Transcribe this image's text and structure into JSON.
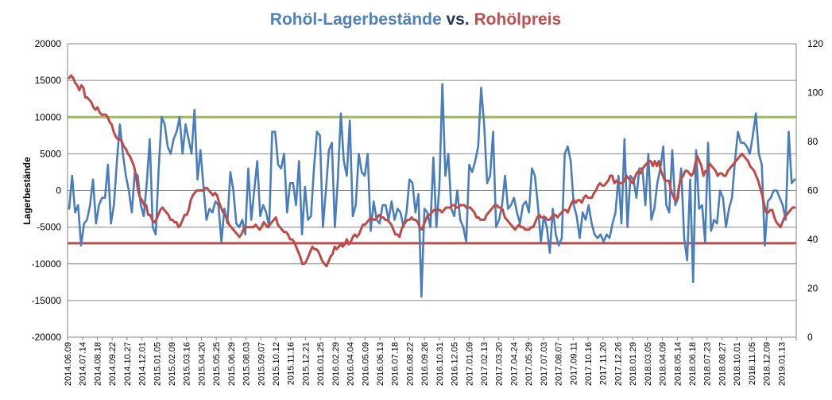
{
  "chart_data": {
    "type": "line",
    "title": {
      "part1": "Rohöl-Lagerbestände",
      "part2": " vs. ",
      "part3": "Rohölpreis"
    },
    "ylabel_left": "Lagerbestände",
    "ylim_left": [
      -20000,
      20000
    ],
    "yticks_left": [
      20000,
      15000,
      10000,
      5000,
      0,
      -5000,
      -10000,
      -15000,
      -20000
    ],
    "ylim_right": [
      0,
      120
    ],
    "yticks_right": [
      120,
      100,
      80,
      60,
      40,
      20,
      0
    ],
    "grid": true,
    "x_ticks": [
      "2014.06.09",
      "2014.07.14",
      "2014.08.18",
      "2014.09.22",
      "2014.10.27",
      "2014.12.01",
      "2015.01.05",
      "2015.02.09",
      "2015.03.16",
      "2015.04.20",
      "2015.05.25",
      "2015.06.29",
      "2015.08.03",
      "2015.09.07",
      "2015.10.12",
      "2015.11.16",
      "2015.12.21",
      "2016.01.25",
      "2016.02.29",
      "2016.04.04",
      "2016.05.09",
      "2016.06.13",
      "2016.07.18",
      "2016.08.22",
      "2016.09.26",
      "2016.10.31",
      "2016.12.05",
      "2017.01.09",
      "2017.02.13",
      "2017.03.20",
      "2017.04.24",
      "2017.05.29",
      "2017.07.03",
      "2017.08.07",
      "2017.09.11",
      "2017.10.16",
      "2017.11.20",
      "2017.12.26",
      "2018.01.29",
      "2018.03.05",
      "2018.04.09",
      "2018.05.14",
      "2018.06.18",
      "2018.07.23",
      "2018.08.27",
      "2018.10.01",
      "2018.11.05",
      "2018.12.09",
      "2019.01.13"
    ],
    "colors": {
      "inventory": "#4a7ebb",
      "price": "#be4b48",
      "upper_line": "#9bbb59",
      "lower_line": "#be4b48",
      "grid": "#868686",
      "title_inventory": "#4f81bd",
      "title_price": "#c0504d",
      "title_mid": "#1f3a60"
    },
    "horizontal_lines": [
      {
        "axis": "left",
        "y": 10000,
        "color": "#9bbb59"
      },
      {
        "axis": "left",
        "y": -7200,
        "color": "#be4b48"
      }
    ],
    "series": [
      {
        "name": "Rohöl-Lagerbestände",
        "axis": "left",
        "color": "#4a7ebb",
        "values": [
          -2500,
          2000,
          -3000,
          -2000,
          -7500,
          -4500,
          -4000,
          -2000,
          1500,
          -4500,
          -2000,
          -1000,
          -1000,
          3500,
          -4500,
          -2000,
          4000,
          9000,
          5000,
          2000,
          0,
          -3000,
          2500,
          2000,
          -2000,
          -3500,
          1000,
          7000,
          -5000,
          -6000,
          3000,
          10000,
          9000,
          6000,
          5000,
          7000,
          8000,
          10000,
          5000,
          9000,
          7000,
          5000,
          11000,
          1500,
          5500,
          500,
          -4000,
          -2500,
          -3000,
          -1500,
          -2000,
          -7000,
          -2500,
          -4500,
          2500,
          0,
          -4500,
          -5000,
          -4000,
          -6000,
          3000,
          -4000,
          0,
          4000,
          -3500,
          -2000,
          -3000,
          -5000,
          8000,
          8000,
          3500,
          3000,
          5000,
          -3000,
          1000,
          1000,
          -2000,
          4000,
          -6000,
          500,
          -4000,
          -3500,
          3000,
          8000,
          7500,
          -5000,
          0,
          5500,
          6500,
          -5000,
          1500,
          10500,
          4000,
          2000,
          9500,
          -3500,
          -2000,
          5000,
          2500,
          2000,
          5000,
          -5500,
          -1500,
          -4000,
          -4500,
          -2000,
          -2000,
          -4000,
          -1500,
          -4000,
          -2500,
          -3000,
          -5000,
          -3000,
          1500,
          1000,
          -3000,
          -500,
          -14500,
          -2500,
          -3000,
          -5000,
          4500,
          -5000,
          500,
          14500,
          2000,
          5000,
          -2500,
          -3500,
          0,
          -4000,
          -5000,
          -7000,
          3500,
          2500,
          4000,
          6000,
          14000,
          9000,
          1000,
          2000,
          8000,
          -5000,
          -4000,
          -2000,
          2000,
          -2500,
          -2000,
          -1000,
          -3000,
          -4500,
          -2000,
          -1500,
          -3000,
          3000,
          2000,
          -2000,
          -7000,
          -3500,
          -5000,
          -8500,
          -2500,
          -6000,
          -7500,
          -6500,
          5000,
          6000,
          4000,
          -2000,
          -3500,
          -6500,
          -3000,
          -4000,
          -2000,
          -4500,
          -6000,
          -6500,
          -6000,
          -7000,
          -6000,
          -6500,
          -4500,
          -3000,
          2000,
          -4500,
          7000,
          -5000,
          2000,
          1500,
          -1000,
          3000,
          3000,
          -2000,
          5000,
          -4000,
          -2500,
          1000,
          3000,
          6000,
          -2000,
          -3000,
          5500,
          -2000,
          -1000,
          3000,
          -6500,
          -9500,
          1500,
          -12500,
          5500,
          -2500,
          -2000,
          -7000,
          6500,
          -5500,
          -4000,
          -4500,
          0,
          -1000,
          -5000,
          -2500,
          -1000,
          4000,
          8000,
          6500,
          6500,
          6000,
          5000,
          7500,
          10500,
          5000,
          3500,
          -7500,
          -1500,
          -1000,
          0,
          0,
          -1000,
          -2000,
          -4000,
          8000,
          1000,
          1500
        ]
      },
      {
        "name": "Rohölpreis",
        "axis": "right",
        "color": "#be4b48",
        "values": [
          106,
          107,
          106,
          104,
          103,
          101,
          103,
          102,
          98,
          98,
          97,
          96,
          94,
          93,
          94,
          92,
          91,
          91,
          91,
          90,
          88,
          87,
          84,
          82,
          81,
          81,
          80,
          78,
          77,
          75,
          74,
          72,
          70,
          66,
          60,
          57,
          56,
          54,
          54,
          50,
          50,
          48,
          47,
          48,
          50,
          52,
          53,
          52,
          51,
          50,
          48,
          48,
          47,
          47,
          45,
          46,
          48,
          50,
          50,
          52,
          56,
          58,
          59,
          60,
          60,
          60,
          60,
          61,
          61,
          60,
          59,
          58,
          59,
          58,
          55,
          53,
          51,
          50,
          48,
          46,
          45,
          44,
          43,
          42,
          41,
          42,
          44,
          45,
          45,
          45,
          45,
          45,
          46,
          45,
          44,
          45,
          47,
          46,
          45,
          46,
          47,
          48,
          49,
          46,
          45,
          44,
          43,
          43,
          42,
          40,
          40,
          39,
          37,
          35,
          33,
          30,
          30,
          31,
          33,
          35,
          37,
          36,
          36,
          35,
          33,
          31,
          30,
          29,
          31,
          33,
          34,
          37,
          36,
          37,
          38,
          37,
          38,
          40,
          38,
          39,
          41,
          42,
          41,
          42,
          44,
          46,
          46,
          47,
          48,
          49,
          48,
          48,
          49,
          50,
          49,
          49,
          48,
          48,
          47,
          46,
          44,
          42,
          42,
          41,
          44,
          46,
          47,
          48,
          48,
          49,
          48,
          48,
          47,
          45,
          44,
          46,
          48,
          50,
          50,
          51,
          52,
          52,
          52,
          52,
          51,
          52,
          53,
          53,
          53,
          54,
          54,
          53,
          53,
          54,
          54,
          54,
          53,
          53,
          53,
          52,
          51,
          49,
          49,
          48,
          48,
          48,
          50,
          51,
          52,
          53,
          54,
          54,
          53,
          53,
          52,
          49,
          48,
          47,
          46,
          45,
          44,
          45,
          46,
          45,
          45,
          44,
          44,
          44,
          45,
          45,
          47,
          49,
          50,
          49,
          49,
          49,
          48,
          48,
          49,
          50,
          50,
          49,
          50,
          51,
          52,
          52,
          51,
          53,
          55,
          56,
          55,
          56,
          56,
          55,
          57,
          58,
          57,
          57,
          57,
          59,
          60,
          62,
          63,
          62,
          62,
          63,
          64,
          66,
          66,
          63,
          64,
          63,
          63,
          63,
          64,
          66,
          65,
          64,
          63,
          65,
          67,
          68,
          67,
          69,
          70,
          71,
          72,
          72,
          70,
          72,
          70,
          72,
          68,
          66,
          64,
          64,
          64,
          60,
          58,
          56,
          56,
          62,
          65,
          66,
          68,
          68,
          67,
          66,
          67,
          71,
          74,
          72,
          70,
          66,
          68,
          68,
          71,
          70,
          69,
          68,
          66,
          67,
          67,
          66,
          66,
          68,
          69,
          70,
          71,
          72,
          73,
          74,
          75,
          74,
          73,
          72,
          70,
          69,
          68,
          66,
          64,
          61,
          58,
          54,
          51,
          51,
          52,
          52,
          49,
          47,
          46,
          45,
          47,
          49,
          50,
          51,
          52,
          53,
          53
        ]
      }
    ]
  }
}
